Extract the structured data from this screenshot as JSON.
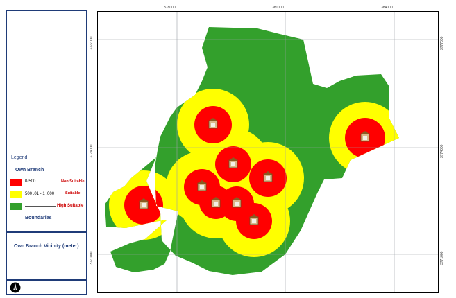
{
  "legend": {
    "title": "Legend",
    "layer_title": "Own Branch",
    "classes": [
      {
        "range": "0-500",
        "label": "Non Suitable",
        "color": "#ff0000",
        "label_color": "#cc0000"
      },
      {
        "range": "500 .01 - 1 ,000",
        "label": "Suitable",
        "color": "#ffff00",
        "label_color": "#cc0000"
      },
      {
        "range": "",
        "label": "High Suitable",
        "color": "#33a02c",
        "label_color": "#cc0000"
      }
    ],
    "boundaries_label": "Boundaries",
    "vicinity_title": "Own Branch Vicinity (meter)",
    "north_arrow_icon": "north-arrow-icon"
  },
  "map": {
    "top_ticks": [
      "378000",
      "381000",
      "384000"
    ],
    "right_ticks": [
      "3777000",
      "3774000",
      "3771000"
    ],
    "left_ticks": [
      "3777000",
      "3774000",
      "3771000"
    ],
    "colors": {
      "high": "#33a02c",
      "suitable": "#ffff00",
      "non": "#ff0000",
      "grid": "#9aa0a6",
      "branch_icon": "#b8863b"
    }
  }
}
